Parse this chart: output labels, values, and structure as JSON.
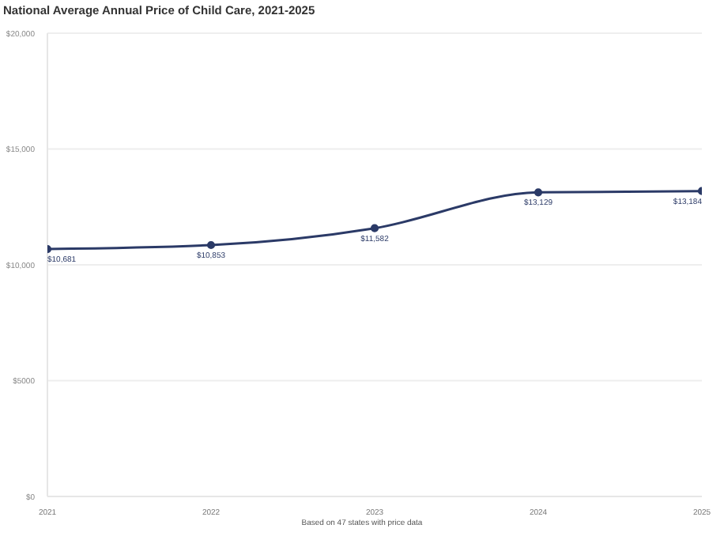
{
  "chart_data": {
    "type": "line",
    "title": "National Average Annual Price of Child Care, 2021-2025",
    "x": [
      2021,
      2022,
      2023,
      2024,
      2025
    ],
    "series": [
      {
        "color": "#2b3a67",
        "values": [
          10681,
          10853,
          11582,
          13129,
          13184
        ],
        "value_labels": [
          "$10,681",
          "$10,853",
          "$11,582",
          "$13,129",
          "$13,184"
        ]
      }
    ],
    "xlim": [
      2021,
      2025
    ],
    "xticks": [
      2021,
      2022,
      2023,
      2024,
      2025
    ],
    "ylim": [
      0,
      20000
    ],
    "yticks": [
      {
        "value": 0,
        "label": "$0"
      },
      {
        "value": 5000,
        "label": "$5000"
      },
      {
        "value": 10000,
        "label": "$10,000"
      },
      {
        "value": 15000,
        "label": "$15,000"
      },
      {
        "value": 20000,
        "label": "$20,000"
      }
    ],
    "grid": "y",
    "marker": "circle",
    "line_style": "solid",
    "annotations": [
      "Based on 47 states with price data"
    ]
  }
}
